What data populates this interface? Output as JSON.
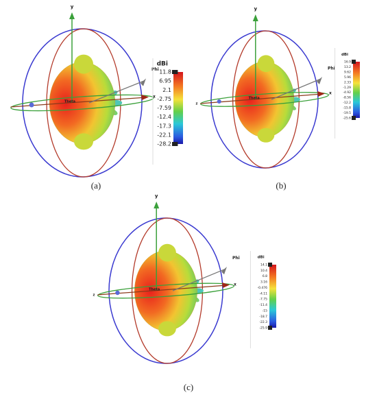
{
  "panels": [
    {
      "label": "(a)",
      "axes": {
        "y": "y",
        "x": "x",
        "phi": "Phi",
        "theta": "Theta"
      },
      "colorbar": {
        "unit": "dBi",
        "ticks": [
          "11.8",
          "6.95",
          "2.1",
          "-2.75",
          "-7.59",
          "-12.4",
          "-17.3",
          "-22.1",
          "-28.2"
        ]
      }
    },
    {
      "label": "(b)",
      "axes": {
        "y": "y",
        "x": "x",
        "z": "z",
        "phi": "Phi",
        "theta": "Theta"
      },
      "colorbar": {
        "unit": "dBi",
        "ticks": [
          "16.9",
          "13.2",
          "9.62",
          "5.96",
          "2.33",
          "-1.29",
          "-4.92",
          "-8.56",
          "-12.2",
          "-15.8",
          "-19.5",
          "-25.6"
        ]
      }
    },
    {
      "label": "(c)",
      "axes": {
        "y": "y",
        "x": "x",
        "z": "z",
        "phi": "Phi",
        "theta": "Theta"
      },
      "colorbar": {
        "unit": "dBi",
        "ticks": [
          "14.1",
          "10.4",
          "6.8",
          "3.16",
          "-0.476",
          "-4.11",
          "-7.75",
          "-11.4",
          "-15",
          "-18.7",
          "-22.3",
          "-25.9"
        ]
      }
    }
  ]
}
